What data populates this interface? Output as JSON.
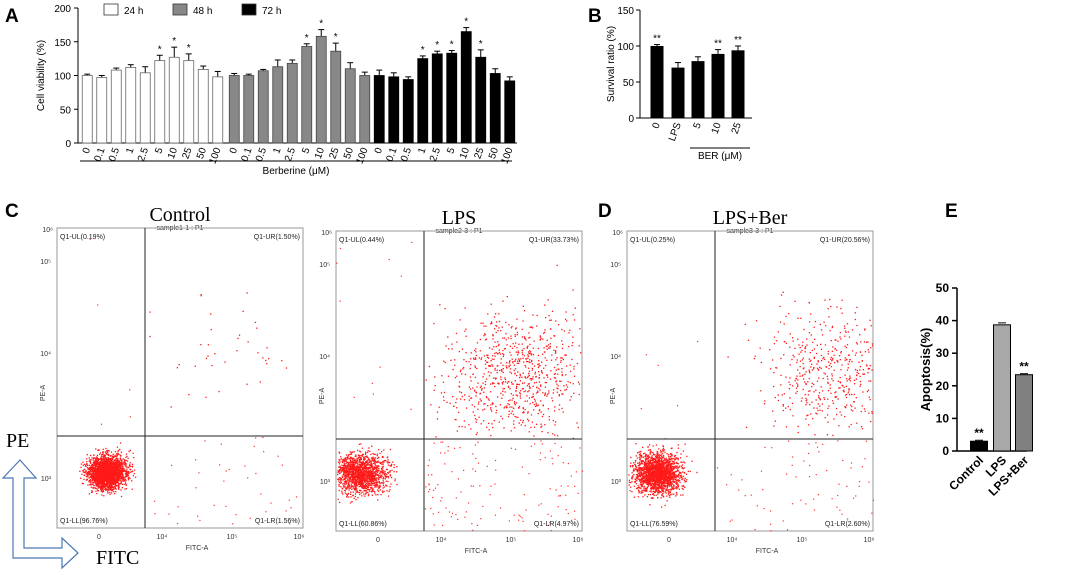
{
  "panels": {
    "A": "A",
    "B": "B",
    "C": "C",
    "D": "D",
    "E": "E"
  },
  "chart_data": [
    {
      "id": "A",
      "type": "bar",
      "title": "",
      "ylabel": "Cell viability (%)",
      "xlabel": "Berberine (μM)",
      "ylim": [
        0,
        200
      ],
      "yticks": [
        "0",
        "50",
        "100",
        "150",
        "200"
      ],
      "categories": [
        "0",
        "0.1",
        "0.5",
        "1",
        "2.5",
        "5",
        "10",
        "25",
        "50",
        "100"
      ],
      "legend": [
        "24 h",
        "48 h",
        "72 h"
      ],
      "series": [
        {
          "name": "24 h",
          "color": "#ffffff",
          "values": [
            100,
            97,
            108,
            112,
            104,
            122,
            127,
            122,
            109,
            98
          ],
          "errors": [
            2,
            3,
            3,
            4,
            9,
            8,
            15,
            10,
            5,
            8
          ],
          "stars": [
            "",
            "",
            "",
            "",
            "",
            "*",
            "*",
            "*",
            "",
            ""
          ]
        },
        {
          "name": "48 h",
          "color": "#888888",
          "values": [
            100,
            100,
            107,
            113,
            118,
            143,
            158,
            136,
            110,
            100
          ],
          "errors": [
            3,
            2,
            2,
            10,
            5,
            4,
            10,
            12,
            9,
            5
          ],
          "stars": [
            "",
            "",
            "",
            "",
            "",
            "*",
            "*",
            "*",
            "",
            ""
          ]
        },
        {
          "name": "72 h",
          "color": "#000000",
          "values": [
            100,
            98,
            94,
            125,
            132,
            133,
            165,
            127,
            103,
            92
          ],
          "errors": [
            8,
            6,
            4,
            4,
            4,
            4,
            6,
            11,
            7,
            6
          ],
          "stars": [
            "",
            "",
            "",
            "*",
            "*",
            "*",
            "*",
            "*",
            "",
            ""
          ]
        }
      ]
    },
    {
      "id": "B",
      "type": "bar",
      "ylabel": "Survival ratio (%)",
      "ylim": [
        0,
        150
      ],
      "yticks": [
        "0",
        "50",
        "100",
        "150"
      ],
      "categories": [
        "0",
        "LPS",
        "5",
        "10",
        "25"
      ],
      "group_label": "BER (μM)",
      "values": [
        100,
        70,
        79,
        89,
        94
      ],
      "errors": [
        2,
        7,
        6,
        6,
        6
      ],
      "stars": [
        "**",
        "",
        "",
        "**",
        "**"
      ]
    },
    {
      "id": "E",
      "type": "bar",
      "ylabel": "Apoptosis(%)",
      "ylim": [
        0,
        50
      ],
      "yticks": [
        "0",
        "10",
        "20",
        "30",
        "40",
        "50"
      ],
      "categories": [
        "Control",
        "LPS",
        "LPS+Ber"
      ],
      "values": [
        3,
        38.7,
        23.4
      ],
      "errors": [
        0.3,
        0.6,
        0.3
      ],
      "colors": [
        "#000000",
        "#a8a8a8",
        "#808080"
      ],
      "stars": [
        "**",
        "",
        "**"
      ]
    },
    {
      "id": "flow",
      "type": "scatter",
      "xlabel": "FITC-A",
      "ylabel": "PE-A",
      "yticks": [
        "10³",
        "10⁴",
        "10⁵"
      ],
      "ytop": "10⁶",
      "xticks": [
        "0",
        "10⁴",
        "10⁵",
        "10⁶"
      ],
      "plots": [
        {
          "title": "Control",
          "sample": "sample1-1 : P1",
          "UL": "Q1-UL(0.19%)",
          "UR": "Q1-UR(1.50%)",
          "LL": "Q1-LL(96.76%)",
          "LR": "Q1-LR(1.56%)",
          "UL_pct": 0.19,
          "UR_pct": 1.5,
          "LL_pct": 96.76,
          "LR_pct": 1.56
        },
        {
          "title": "LPS",
          "sample": "sample2-3 : P1",
          "UL": "Q1-UL(0.44%)",
          "UR": "Q1-UR(33.73%)",
          "LL": "Q1-LL(60.86%)",
          "LR": "Q1-LR(4.97%)",
          "UL_pct": 0.44,
          "UR_pct": 33.73,
          "LL_pct": 60.86,
          "LR_pct": 4.97
        },
        {
          "title": "LPS+Ber",
          "sample": "sample3-3 : P1",
          "UL": "Q1-UL(0.25%)",
          "UR": "Q1-UR(20.56%)",
          "LL": "Q1-LL(76.59%)",
          "LR": "Q1-LR(2.60%)",
          "UL_pct": 0.25,
          "UR_pct": 20.56,
          "LL_pct": 76.59,
          "LR_pct": 2.6
        }
      ]
    }
  ],
  "axis_key": {
    "pe": "PE",
    "fitc": "FITC"
  }
}
